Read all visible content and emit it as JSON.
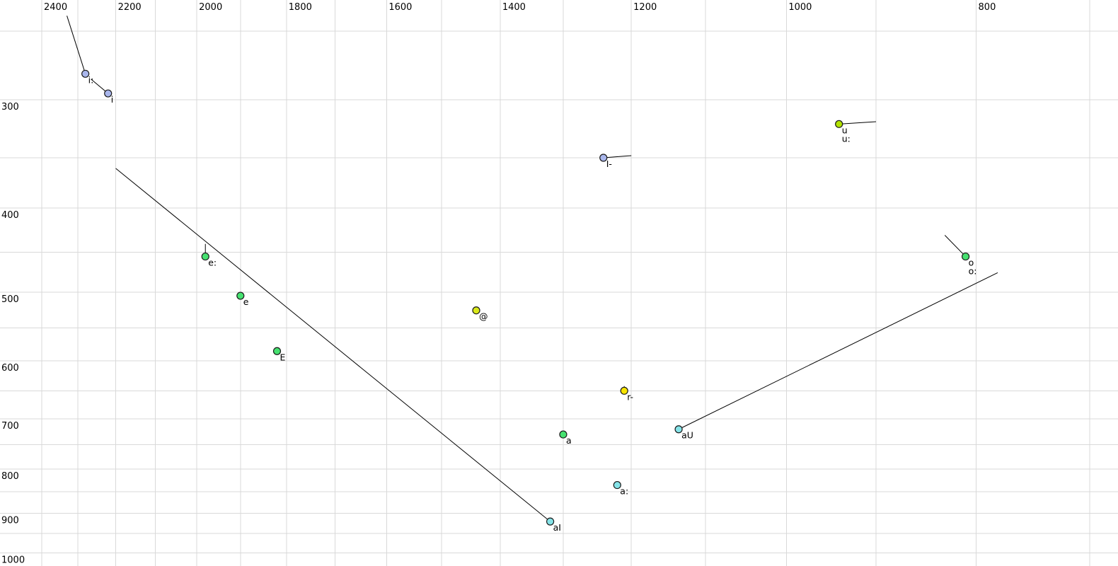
{
  "chart_data": {
    "type": "scatter",
    "title": "",
    "xlabel": "",
    "ylabel": "",
    "legend": "none",
    "grid": "on",
    "grid_color": "#d9d9d9",
    "background": "#ffffff",
    "point_stroke": "#1a1a1a",
    "trajectory_color": "#000000",
    "x_axis": {
      "position": "top",
      "scale": "log",
      "reversed": true,
      "tick_labels": [
        "2400",
        "2200",
        "2000",
        "1800",
        "1600",
        "1400",
        "1200",
        "1000",
        "800"
      ],
      "grid_min": 700,
      "grid_max": 2400,
      "grid_step": 100,
      "range_hz": [
        2520,
        680
      ]
    },
    "y_axis": {
      "position": "left",
      "scale": "log",
      "increases_downward": true,
      "tick_labels": [
        "300",
        "400",
        "500",
        "600",
        "700",
        "800",
        "900",
        "1000"
      ],
      "grid_min": 250,
      "grid_max": 1000,
      "grid_step": 50,
      "range_hz": [
        230,
        1040
      ]
    },
    "colors": {
      "lavender": "#a9b6ec",
      "green": "#46e170",
      "yellow_green": "#b2e300",
      "olive_yellow": "#d9e81a",
      "yellow": "#f7e400",
      "cyan": "#85e3e8"
    },
    "points": [
      {
        "labels": [
          "i:"
        ],
        "f2": 2280,
        "f1": 280,
        "color": "lavender"
      },
      {
        "labels": [
          "i"
        ],
        "f2": 2220,
        "f1": 295,
        "color": "lavender"
      },
      {
        "labels": [
          "I-"
        ],
        "f2": 1240,
        "f1": 350,
        "color": "lavender"
      },
      {
        "labels": [
          "u",
          "u:"
        ],
        "f2": 940,
        "f1": 320,
        "color": "yellow_green"
      },
      {
        "labels": [
          "e:"
        ],
        "f2": 1980,
        "f1": 455,
        "color": "green"
      },
      {
        "labels": [
          "e"
        ],
        "f2": 1900,
        "f1": 505,
        "color": "green"
      },
      {
        "labels": [
          "@"
        ],
        "f2": 1440,
        "f1": 525,
        "color": "olive_yellow"
      },
      {
        "labels": [
          "E"
        ],
        "f2": 1820,
        "f1": 585,
        "color": "green"
      },
      {
        "labels": [
          "r-"
        ],
        "f2": 1210,
        "f1": 650,
        "color": "yellow"
      },
      {
        "labels": [
          "a"
        ],
        "f2": 1300,
        "f1": 730,
        "color": "green"
      },
      {
        "labels": [
          "aU"
        ],
        "f2": 1135,
        "f1": 720,
        "color": "cyan"
      },
      {
        "labels": [
          "a:"
        ],
        "f2": 1220,
        "f1": 835,
        "color": "cyan"
      },
      {
        "labels": [
          "aI"
        ],
        "f2": 1320,
        "f1": 920,
        "color": "cyan"
      },
      {
        "labels": [
          "o",
          "o:"
        ],
        "f2": 810,
        "f1": 455,
        "color": "green"
      }
    ],
    "trajectories": [
      {
        "vowel": "i:",
        "from_f2": 2330,
        "from_f1": 240,
        "to_f2": 2280,
        "to_f1": 280
      },
      {
        "vowel": "i",
        "from_f2": 2265,
        "from_f1": 284,
        "to_f2": 2220,
        "to_f1": 295
      },
      {
        "vowel": "I-",
        "from_f2": 1240,
        "from_f1": 350,
        "to_f2": 1200,
        "to_f1": 348
      },
      {
        "vowel": "u:",
        "from_f2": 940,
        "from_f1": 320,
        "to_f2": 900,
        "to_f1": 318
      },
      {
        "vowel": "e:",
        "from_f2": 1980,
        "from_f1": 440,
        "to_f2": 1980,
        "to_f1": 455
      },
      {
        "vowel": "r-",
        "from_f2": 1210,
        "from_f1": 642,
        "to_f2": 1210,
        "to_f1": 650
      },
      {
        "vowel": "a",
        "from_f2": 1300,
        "from_f1": 723,
        "to_f2": 1300,
        "to_f1": 730
      },
      {
        "vowel": "aI",
        "from_f2": 2200,
        "from_f1": 360,
        "to_f2": 1320,
        "to_f1": 920
      },
      {
        "vowel": "aU",
        "from_f2": 1135,
        "from_f1": 720,
        "to_f2": 780,
        "to_f1": 475
      },
      {
        "vowel": "o:",
        "from_f2": 830,
        "from_f1": 430,
        "to_f2": 810,
        "to_f1": 455
      }
    ]
  }
}
